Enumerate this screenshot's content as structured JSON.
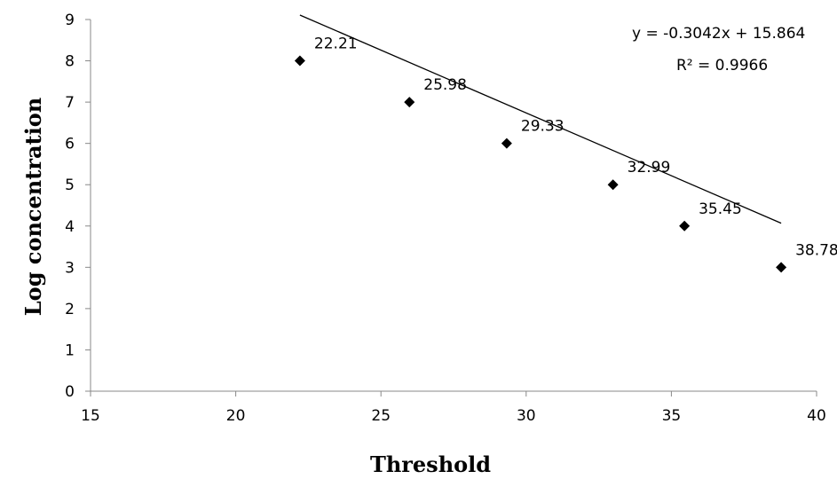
{
  "chart_data": {
    "type": "scatter",
    "xlabel": "Threshold",
    "ylabel": "Log concentration",
    "xlim": [
      15,
      40
    ],
    "ylim": [
      0,
      9
    ],
    "xticks": [
      "15",
      "20",
      "25",
      "30",
      "35",
      "40"
    ],
    "yticks": [
      "0",
      "1",
      "2",
      "3",
      "4",
      "5",
      "6",
      "7",
      "8",
      "9"
    ],
    "points": [
      {
        "x": 22.21,
        "y": 8,
        "label": "22.21"
      },
      {
        "x": 25.98,
        "y": 7,
        "label": "25.98"
      },
      {
        "x": 29.33,
        "y": 6,
        "label": "29.33"
      },
      {
        "x": 32.99,
        "y": 5,
        "label": "32.99"
      },
      {
        "x": 35.45,
        "y": 4,
        "label": "35.45"
      },
      {
        "x": 38.78,
        "y": 3,
        "label": "38.78"
      }
    ],
    "trendline": {
      "type": "linear",
      "slope": -0.3042,
      "intercept": 15.864,
      "equation": "y = -0.3042x + 15.864",
      "r_squared": "R² = 0.9966"
    },
    "marker": "diamond",
    "marker_color": "#000000",
    "line_color": "#000000",
    "grid": false,
    "legend": "none"
  }
}
